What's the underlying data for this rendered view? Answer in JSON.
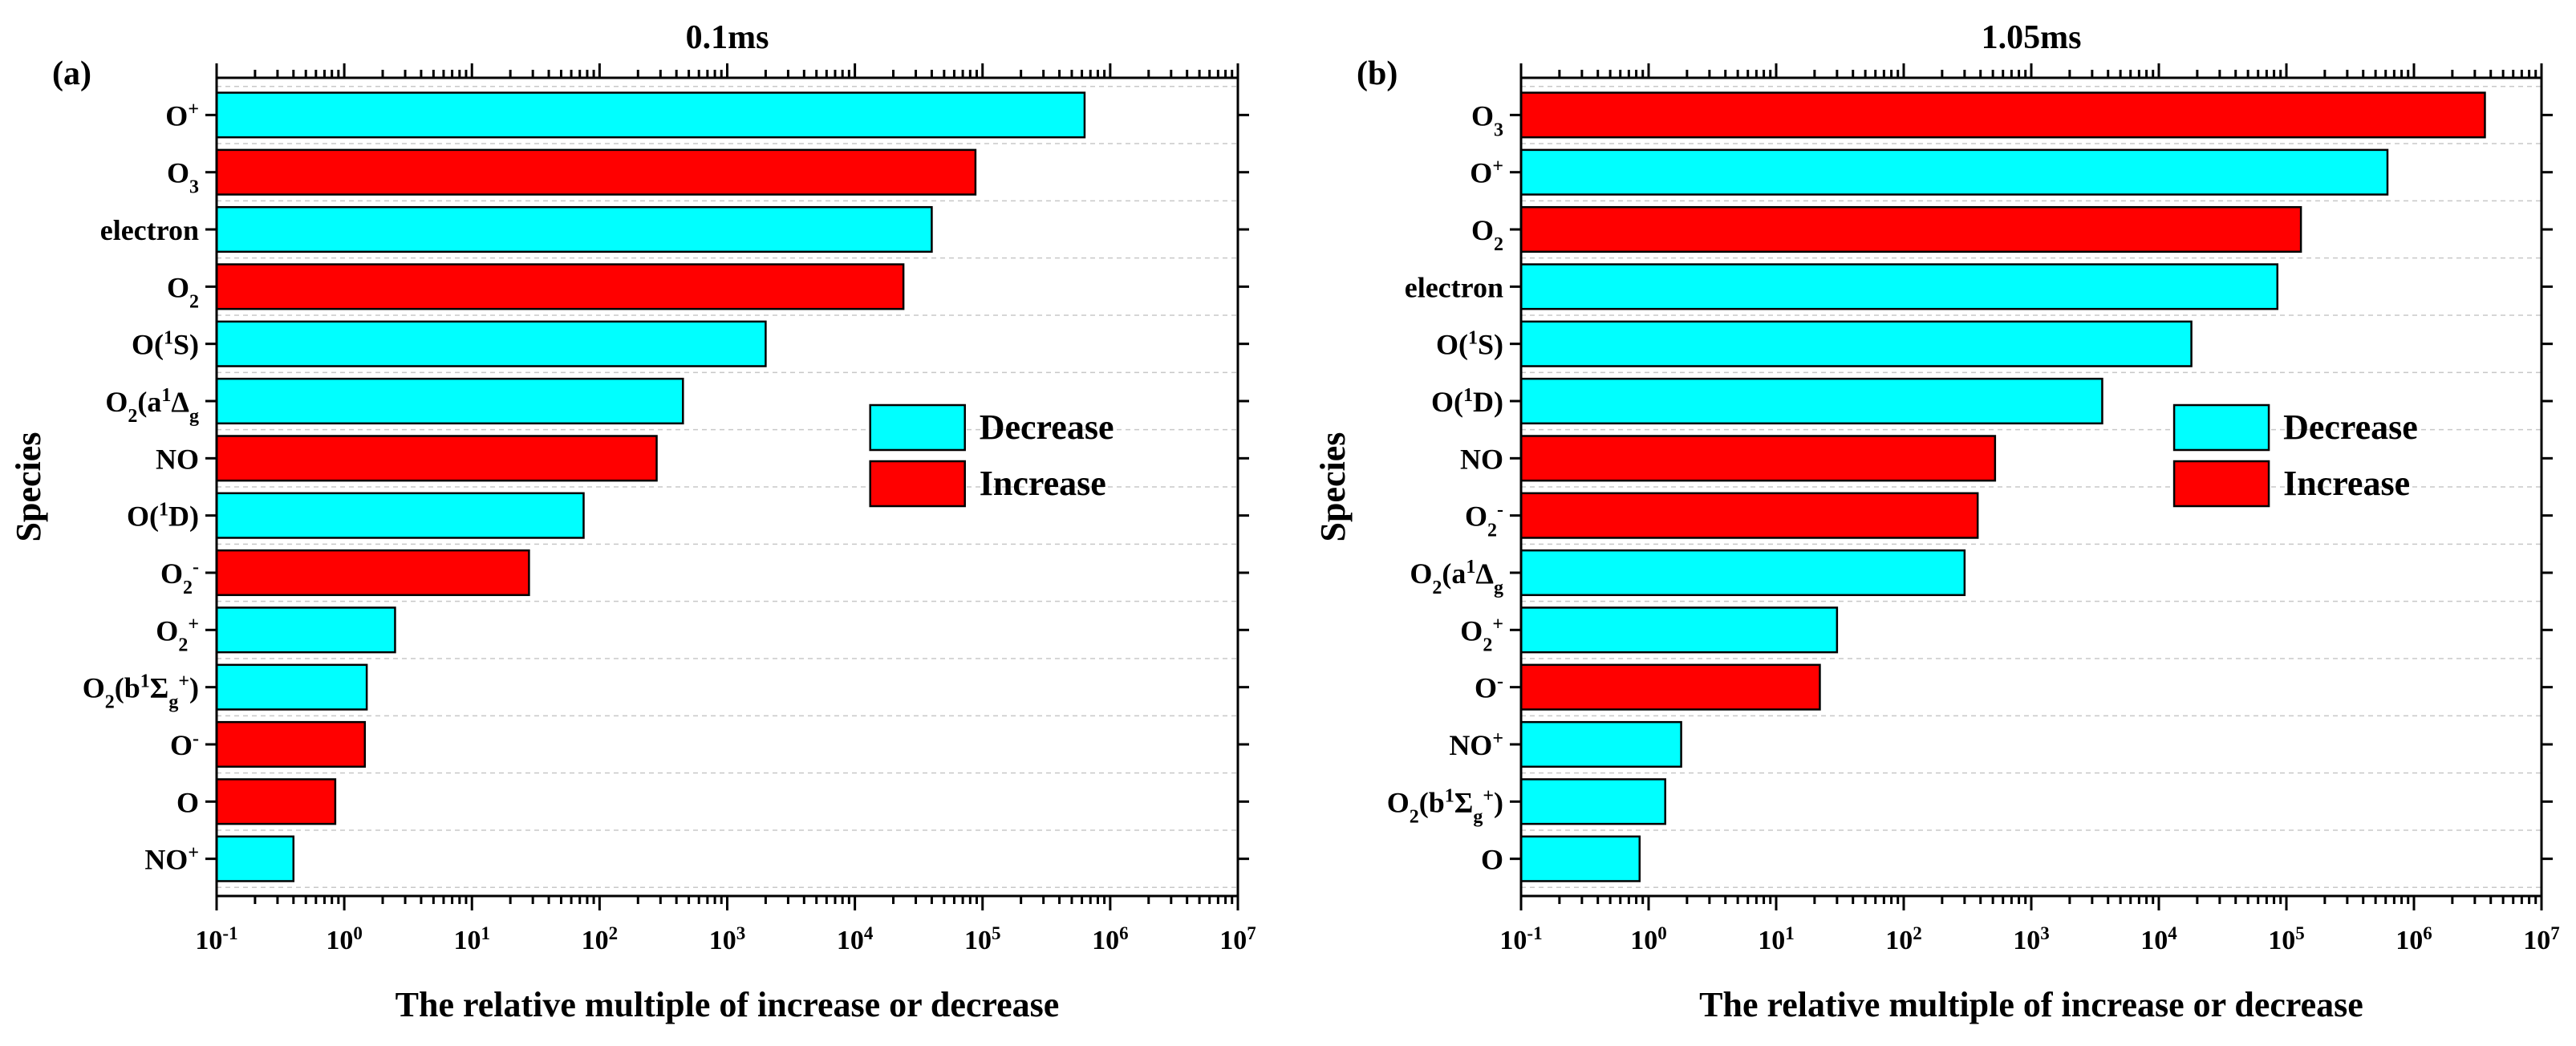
{
  "chart_data": [
    {
      "type": "bar",
      "orientation": "horizontal",
      "panel_label": "(a)",
      "title": "0.1ms",
      "xlabel": "The relative multiple of increase or decrease",
      "ylabel": "Species",
      "xscale": "log",
      "xlim": [
        0.1,
        10000000
      ],
      "x_ticks": [
        {
          "base": "10",
          "exp": "-1"
        },
        {
          "base": "10",
          "exp": "0"
        },
        {
          "base": "10",
          "exp": "1"
        },
        {
          "base": "10",
          "exp": "2"
        },
        {
          "base": "10",
          "exp": "3"
        },
        {
          "base": "10",
          "exp": "4"
        },
        {
          "base": "10",
          "exp": "5"
        },
        {
          "base": "10",
          "exp": "6"
        },
        {
          "base": "10",
          "exp": "7"
        }
      ],
      "legend": {
        "position": "center-right",
        "entries": [
          {
            "label": "Decrease",
            "color": "#00FFFF"
          },
          {
            "label": "Increase",
            "color": "#FF0000"
          }
        ]
      },
      "bars": [
        {
          "label": [
            {
              "t": "O"
            },
            {
              "t": "+",
              "s": "sup"
            }
          ],
          "value": 630000,
          "change": "Decrease"
        },
        {
          "label": [
            {
              "t": "O"
            },
            {
              "t": "3",
              "s": "sub"
            }
          ],
          "value": 88000,
          "change": "Increase"
        },
        {
          "label": [
            {
              "t": "electron"
            }
          ],
          "value": 40000,
          "change": "Decrease"
        },
        {
          "label": [
            {
              "t": "O"
            },
            {
              "t": "2",
              "s": "sub"
            }
          ],
          "value": 24000,
          "change": "Increase"
        },
        {
          "label": [
            {
              "t": "O("
            },
            {
              "t": "1",
              "s": "sup"
            },
            {
              "t": "S)"
            }
          ],
          "value": 2000,
          "change": "Decrease"
        },
        {
          "label": [
            {
              "t": "O"
            },
            {
              "t": "2",
              "s": "sub"
            },
            {
              "t": "(a"
            },
            {
              "t": "1",
              "s": "sup"
            },
            {
              "t": "Δ"
            },
            {
              "t": "g",
              "s": "sub"
            }
          ],
          "value": 450,
          "change": "Decrease"
        },
        {
          "label": [
            {
              "t": "NO"
            }
          ],
          "value": 280,
          "change": "Increase"
        },
        {
          "label": [
            {
              "t": "O("
            },
            {
              "t": "1",
              "s": "sup"
            },
            {
              "t": "D)"
            }
          ],
          "value": 75,
          "change": "Decrease"
        },
        {
          "label": [
            {
              "t": "O"
            },
            {
              "t": "2",
              "s": "sub"
            },
            {
              "t": "-",
              "s": "sup"
            }
          ],
          "value": 28,
          "change": "Increase"
        },
        {
          "label": [
            {
              "t": "O"
            },
            {
              "t": "2",
              "s": "sub"
            },
            {
              "t": "+",
              "s": "sup"
            }
          ],
          "value": 2.5,
          "change": "Decrease"
        },
        {
          "label": [
            {
              "t": "O"
            },
            {
              "t": "2",
              "s": "sub"
            },
            {
              "t": "(b"
            },
            {
              "t": "1",
              "s": "sup"
            },
            {
              "t": "Σ"
            },
            {
              "t": "g",
              "s": "sub"
            },
            {
              "t": "+",
              "s": "sup"
            },
            {
              "t": ")"
            }
          ],
          "value": 1.5,
          "change": "Decrease"
        },
        {
          "label": [
            {
              "t": "O"
            },
            {
              "t": "-",
              "s": "sup"
            }
          ],
          "value": 1.45,
          "change": "Increase"
        },
        {
          "label": [
            {
              "t": "O"
            }
          ],
          "value": 0.85,
          "change": "Increase"
        },
        {
          "label": [
            {
              "t": "NO"
            },
            {
              "t": "+",
              "s": "sup"
            }
          ],
          "value": 0.4,
          "change": "Decrease"
        }
      ]
    },
    {
      "type": "bar",
      "orientation": "horizontal",
      "panel_label": "(b)",
      "title": "1.05ms",
      "xlabel": "The relative multiple of increase or decrease",
      "ylabel": "Species",
      "xscale": "log",
      "xlim": [
        0.1,
        10000000
      ],
      "x_ticks": [
        {
          "base": "10",
          "exp": "-1"
        },
        {
          "base": "10",
          "exp": "0"
        },
        {
          "base": "10",
          "exp": "1"
        },
        {
          "base": "10",
          "exp": "2"
        },
        {
          "base": "10",
          "exp": "3"
        },
        {
          "base": "10",
          "exp": "4"
        },
        {
          "base": "10",
          "exp": "5"
        },
        {
          "base": "10",
          "exp": "6"
        },
        {
          "base": "10",
          "exp": "7"
        }
      ],
      "legend": {
        "position": "center-right",
        "entries": [
          {
            "label": "Decrease",
            "color": "#00FFFF"
          },
          {
            "label": "Increase",
            "color": "#FF0000"
          }
        ]
      },
      "bars": [
        {
          "label": [
            {
              "t": "O"
            },
            {
              "t": "3",
              "s": "sub"
            }
          ],
          "value": 3600000,
          "change": "Increase"
        },
        {
          "label": [
            {
              "t": "O"
            },
            {
              "t": "+",
              "s": "sup"
            }
          ],
          "value": 620000,
          "change": "Decrease"
        },
        {
          "label": [
            {
              "t": "O"
            },
            {
              "t": "2",
              "s": "sub"
            }
          ],
          "value": 130000,
          "change": "Increase"
        },
        {
          "label": [
            {
              "t": "electron"
            }
          ],
          "value": 85000,
          "change": "Decrease"
        },
        {
          "label": [
            {
              "t": "O("
            },
            {
              "t": "1",
              "s": "sup"
            },
            {
              "t": "S)"
            }
          ],
          "value": 18000,
          "change": "Decrease"
        },
        {
          "label": [
            {
              "t": "O("
            },
            {
              "t": "1",
              "s": "sup"
            },
            {
              "t": "D)"
            }
          ],
          "value": 3600,
          "change": "Decrease"
        },
        {
          "label": [
            {
              "t": "NO"
            }
          ],
          "value": 520,
          "change": "Increase"
        },
        {
          "label": [
            {
              "t": "O"
            },
            {
              "t": "2",
              "s": "sub"
            },
            {
              "t": "-",
              "s": "sup"
            }
          ],
          "value": 380,
          "change": "Increase"
        },
        {
          "label": [
            {
              "t": "O"
            },
            {
              "t": "2",
              "s": "sub"
            },
            {
              "t": "(a"
            },
            {
              "t": "1",
              "s": "sup"
            },
            {
              "t": "Δ"
            },
            {
              "t": "g",
              "s": "sub"
            }
          ],
          "value": 300,
          "change": "Decrease"
        },
        {
          "label": [
            {
              "t": "O"
            },
            {
              "t": "2",
              "s": "sub"
            },
            {
              "t": "+",
              "s": "sup"
            }
          ],
          "value": 30,
          "change": "Decrease"
        },
        {
          "label": [
            {
              "t": "O"
            },
            {
              "t": "-",
              "s": "sup"
            }
          ],
          "value": 22,
          "change": "Increase"
        },
        {
          "label": [
            {
              "t": "NO"
            },
            {
              "t": "+",
              "s": "sup"
            }
          ],
          "value": 1.8,
          "change": "Decrease"
        },
        {
          "label": [
            {
              "t": "O"
            },
            {
              "t": "2",
              "s": "sub"
            },
            {
              "t": "(b"
            },
            {
              "t": "1",
              "s": "sup"
            },
            {
              "t": "Σ"
            },
            {
              "t": "g",
              "s": "sub"
            },
            {
              "t": "+",
              "s": "sup"
            },
            {
              "t": ")"
            }
          ],
          "value": 1.35,
          "change": "Decrease"
        },
        {
          "label": [
            {
              "t": "O"
            }
          ],
          "value": 0.85,
          "change": "Decrease"
        }
      ]
    }
  ]
}
